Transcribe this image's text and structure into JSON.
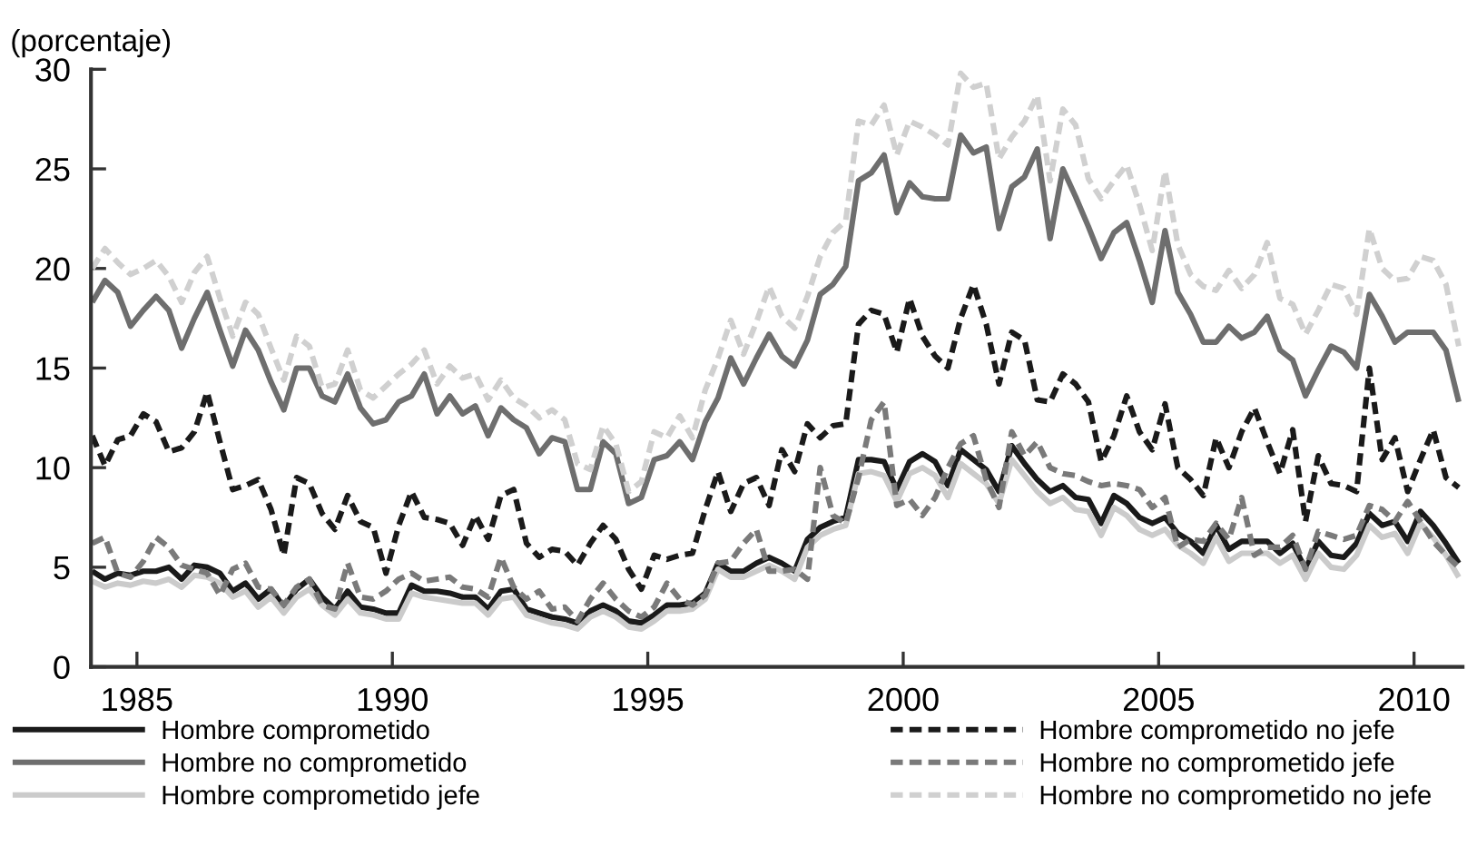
{
  "chart_data": {
    "type": "line",
    "ylabel": "(porcentaje)",
    "x": [
      1984.125,
      1984.375,
      1984.625,
      1984.875,
      1985.125,
      1985.375,
      1985.625,
      1985.875,
      1986.125,
      1986.375,
      1986.625,
      1986.875,
      1987.125,
      1987.375,
      1987.625,
      1987.875,
      1988.125,
      1988.375,
      1988.625,
      1988.875,
      1989.125,
      1989.375,
      1989.625,
      1989.875,
      1990.125,
      1990.375,
      1990.625,
      1990.875,
      1991.125,
      1991.375,
      1991.625,
      1991.875,
      1992.125,
      1992.375,
      1992.625,
      1992.875,
      1993.125,
      1993.375,
      1993.625,
      1993.875,
      1994.125,
      1994.375,
      1994.625,
      1994.875,
      1995.125,
      1995.375,
      1995.625,
      1995.875,
      1996.125,
      1996.375,
      1996.625,
      1996.875,
      1997.125,
      1997.375,
      1997.625,
      1997.875,
      1998.125,
      1998.375,
      1998.625,
      1998.875,
      1999.125,
      1999.375,
      1999.625,
      1999.875,
      2000.125,
      2000.375,
      2000.625,
      2000.875,
      2001.125,
      2001.375,
      2001.625,
      2001.875,
      2002.125,
      2002.375,
      2002.625,
      2002.875,
      2003.125,
      2003.375,
      2003.625,
      2003.875,
      2004.125,
      2004.375,
      2004.625,
      2004.875,
      2005.125,
      2005.375,
      2005.625,
      2005.875,
      2006.125,
      2006.375,
      2006.625,
      2006.875,
      2007.125,
      2007.375,
      2007.625,
      2007.875,
      2008.125,
      2008.375,
      2008.625,
      2008.875,
      2009.125,
      2009.375,
      2009.625,
      2009.875,
      2010.125,
      2010.375,
      2010.625,
      2010.875
    ],
    "xlim": [
      1984.1,
      2010.95
    ],
    "xticks": [
      1985,
      1990,
      1995,
      2000,
      2005,
      2010
    ],
    "ylim": [
      0,
      30
    ],
    "yticks": [
      0,
      5,
      10,
      15,
      20,
      25,
      30
    ],
    "grid": false,
    "legend": "bottom",
    "series": [
      {
        "name": "Hombre comprometido",
        "color": "#1a1a1a",
        "line_style": "solid",
        "values": [
          4.8,
          4.4,
          4.7,
          4.6,
          4.8,
          4.8,
          5.0,
          4.4,
          5.1,
          5.0,
          4.7,
          3.8,
          4.2,
          3.4,
          3.9,
          3.0,
          3.9,
          4.4,
          3.5,
          2.9,
          3.8,
          3.0,
          2.9,
          2.7,
          2.7,
          4.1,
          3.8,
          3.8,
          3.7,
          3.5,
          3.5,
          2.9,
          3.8,
          3.9,
          2.9,
          2.7,
          2.5,
          2.4,
          2.2,
          2.8,
          3.1,
          2.8,
          2.3,
          2.2,
          2.6,
          3.1,
          3.1,
          3.2,
          3.7,
          5.2,
          4.8,
          4.8,
          5.2,
          5.5,
          5.2,
          4.8,
          6.4,
          7.0,
          7.3,
          7.5,
          10.4,
          10.4,
          10.3,
          8.9,
          10.3,
          10.7,
          10.3,
          9.1,
          10.9,
          10.4,
          9.9,
          8.8,
          11.1,
          10.2,
          9.4,
          8.8,
          9.1,
          8.5,
          8.4,
          7.2,
          8.6,
          8.2,
          7.5,
          7.2,
          7.5,
          6.7,
          6.3,
          5.7,
          7.1,
          5.9,
          6.3,
          6.3,
          6.3,
          5.7,
          6.2,
          4.9,
          6.3,
          5.6,
          5.5,
          6.2,
          7.7,
          7.1,
          7.3,
          6.3,
          7.8,
          7.1,
          6.2,
          5.2
        ]
      },
      {
        "name": "Hombre no comprometido",
        "color": "#6e6e6e",
        "line_style": "solid",
        "values": [
          18.3,
          19.4,
          18.8,
          17.1,
          17.9,
          18.6,
          17.9,
          16.0,
          17.5,
          18.8,
          16.9,
          15.1,
          16.9,
          15.9,
          14.3,
          12.9,
          15.0,
          15.0,
          13.6,
          13.3,
          14.7,
          13.0,
          12.2,
          12.4,
          13.3,
          13.6,
          14.7,
          12.7,
          13.6,
          12.7,
          13.1,
          11.6,
          13.0,
          12.4,
          12.0,
          10.7,
          11.5,
          11.3,
          8.9,
          8.9,
          11.3,
          10.7,
          8.2,
          8.5,
          10.4,
          10.6,
          11.3,
          10.4,
          12.3,
          13.5,
          15.5,
          14.2,
          15.5,
          16.7,
          15.6,
          15.1,
          16.4,
          18.7,
          19.2,
          20.1,
          24.4,
          24.8,
          25.7,
          22.8,
          24.3,
          23.6,
          23.5,
          23.5,
          26.7,
          25.8,
          26.1,
          22.0,
          24.1,
          24.6,
          26.0,
          21.5,
          25.0,
          23.6,
          22.1,
          20.5,
          21.8,
          22.3,
          20.4,
          18.3,
          21.9,
          18.8,
          17.7,
          16.3,
          16.3,
          17.1,
          16.5,
          16.8,
          17.6,
          15.9,
          15.4,
          13.6,
          14.9,
          16.1,
          15.8,
          15.0,
          18.7,
          17.6,
          16.3,
          16.8,
          16.8,
          16.8,
          15.9,
          13.3
        ]
      },
      {
        "name": "Hombre comprometido jefe",
        "color": "#cbcbcb",
        "line_style": "solid",
        "values": [
          4.3,
          4.0,
          4.2,
          4.1,
          4.3,
          4.2,
          4.4,
          4.0,
          4.6,
          4.5,
          4.2,
          3.5,
          3.8,
          3.0,
          3.5,
          2.7,
          3.5,
          3.9,
          3.1,
          2.6,
          3.4,
          2.7,
          2.6,
          2.4,
          2.4,
          3.7,
          3.5,
          3.4,
          3.3,
          3.2,
          3.2,
          2.6,
          3.4,
          3.5,
          2.6,
          2.4,
          2.2,
          2.1,
          1.9,
          2.5,
          2.8,
          2.5,
          2.0,
          1.9,
          2.3,
          2.8,
          2.8,
          2.9,
          3.4,
          4.9,
          4.5,
          4.5,
          4.8,
          5.1,
          4.8,
          4.4,
          6.0,
          6.6,
          6.9,
          7.1,
          9.7,
          9.8,
          9.6,
          8.3,
          9.7,
          10.0,
          9.6,
          8.5,
          10.2,
          9.7,
          9.2,
          8.2,
          10.4,
          9.6,
          8.8,
          8.2,
          8.5,
          7.9,
          7.8,
          6.6,
          8.0,
          7.6,
          6.9,
          6.6,
          6.9,
          6.1,
          5.7,
          5.2,
          6.5,
          5.3,
          5.7,
          5.7,
          5.7,
          5.2,
          5.6,
          4.4,
          5.7,
          5.0,
          4.9,
          5.6,
          7.1,
          6.5,
          6.7,
          5.7,
          7.2,
          6.5,
          5.6,
          4.5
        ]
      },
      {
        "name": "Hombre comprometido no jefe",
        "color": "#1a1a1a",
        "line_style": "dashed",
        "values": [
          11.6,
          10.1,
          11.4,
          11.6,
          12.7,
          12.3,
          10.8,
          11.0,
          11.8,
          13.8,
          11.3,
          8.9,
          9.1,
          9.4,
          7.9,
          5.6,
          9.5,
          9.2,
          7.7,
          6.9,
          8.6,
          7.3,
          7.0,
          4.7,
          7.1,
          8.8,
          7.5,
          7.4,
          7.2,
          6.1,
          7.6,
          6.4,
          8.6,
          8.9,
          6.2,
          5.5,
          5.9,
          5.8,
          5.1,
          6.2,
          7.1,
          6.4,
          4.9,
          3.9,
          5.6,
          5.4,
          5.6,
          5.7,
          7.9,
          9.8,
          7.8,
          9.2,
          9.5,
          8.1,
          10.9,
          9.8,
          12.2,
          11.5,
          12.1,
          12.2,
          17.2,
          17.9,
          17.7,
          15.8,
          18.5,
          16.6,
          15.6,
          15.0,
          17.5,
          19.2,
          17.2,
          14.2,
          16.8,
          16.4,
          13.4,
          13.3,
          14.7,
          14.2,
          13.3,
          10.3,
          11.6,
          13.6,
          11.8,
          10.9,
          13.2,
          10.0,
          9.4,
          8.6,
          11.5,
          10.0,
          11.8,
          13.0,
          11.3,
          9.7,
          11.9,
          7.3,
          10.6,
          9.2,
          9.1,
          8.8,
          15.0,
          10.4,
          11.5,
          8.8,
          10.4,
          11.9,
          9.5,
          9.0
        ]
      },
      {
        "name": "Hombre no comprometido jefe",
        "color": "#7a7a7a",
        "line_style": "dashed",
        "values": [
          6.2,
          6.5,
          4.7,
          4.5,
          5.3,
          6.5,
          6.0,
          5.1,
          4.9,
          4.7,
          3.6,
          4.9,
          5.2,
          4.0,
          3.9,
          3.1,
          4.0,
          4.4,
          3.1,
          2.9,
          5.2,
          3.5,
          3.4,
          3.8,
          4.4,
          4.7,
          4.3,
          4.4,
          4.5,
          4.0,
          3.9,
          3.5,
          5.5,
          4.0,
          3.4,
          3.8,
          2.9,
          3.0,
          2.3,
          3.4,
          4.2,
          3.4,
          2.8,
          2.5,
          3.0,
          4.2,
          3.4,
          3.1,
          3.6,
          5.2,
          5.3,
          6.2,
          6.9,
          4.8,
          4.8,
          4.9,
          4.4,
          10.0,
          7.6,
          7.2,
          9.5,
          12.4,
          13.3,
          8.1,
          8.4,
          7.6,
          8.5,
          10.0,
          11.2,
          11.6,
          9.4,
          8.0,
          11.8,
          10.6,
          11.3,
          10.0,
          9.7,
          9.6,
          9.3,
          9.1,
          9.2,
          9.1,
          8.9,
          8.0,
          8.5,
          6.0,
          6.4,
          6.3,
          7.2,
          6.4,
          8.5,
          5.6,
          6.0,
          6.0,
          6.6,
          4.9,
          6.8,
          6.6,
          6.4,
          6.6,
          8.1,
          7.9,
          7.3,
          8.3,
          7.3,
          6.3,
          5.6,
          5.0
        ]
      },
      {
        "name": "Hombre no comprometido no jefe",
        "color": "#d0d0d0",
        "line_style": "dashed",
        "values": [
          20.0,
          21.0,
          20.3,
          19.7,
          20.0,
          20.4,
          19.6,
          18.3,
          19.8,
          20.6,
          18.5,
          16.6,
          18.3,
          17.7,
          16.0,
          14.4,
          16.6,
          16.1,
          14.0,
          14.2,
          15.9,
          13.9,
          13.5,
          14.1,
          14.7,
          15.2,
          15.9,
          14.2,
          15.1,
          14.5,
          14.7,
          13.4,
          14.4,
          13.5,
          13.1,
          12.5,
          12.9,
          12.4,
          10.2,
          9.9,
          12.1,
          11.2,
          8.8,
          9.3,
          11.8,
          11.5,
          12.6,
          11.5,
          13.9,
          15.5,
          17.4,
          15.7,
          17.3,
          19.1,
          17.6,
          17.0,
          18.6,
          20.6,
          21.8,
          22.4,
          27.4,
          27.2,
          28.2,
          25.7,
          27.4,
          27.1,
          26.7,
          26.2,
          29.8,
          29.1,
          29.3,
          25.5,
          26.6,
          27.4,
          28.7,
          24.4,
          28.0,
          27.2,
          24.5,
          23.5,
          24.4,
          25.2,
          23.2,
          20.9,
          24.9,
          21.2,
          19.7,
          19.1,
          18.9,
          19.9,
          19.0,
          19.7,
          21.3,
          18.5,
          18.2,
          16.7,
          17.9,
          19.2,
          19.0,
          17.7,
          22.0,
          20.0,
          19.4,
          19.5,
          20.6,
          20.4,
          19.2,
          16.1
        ]
      }
    ]
  }
}
